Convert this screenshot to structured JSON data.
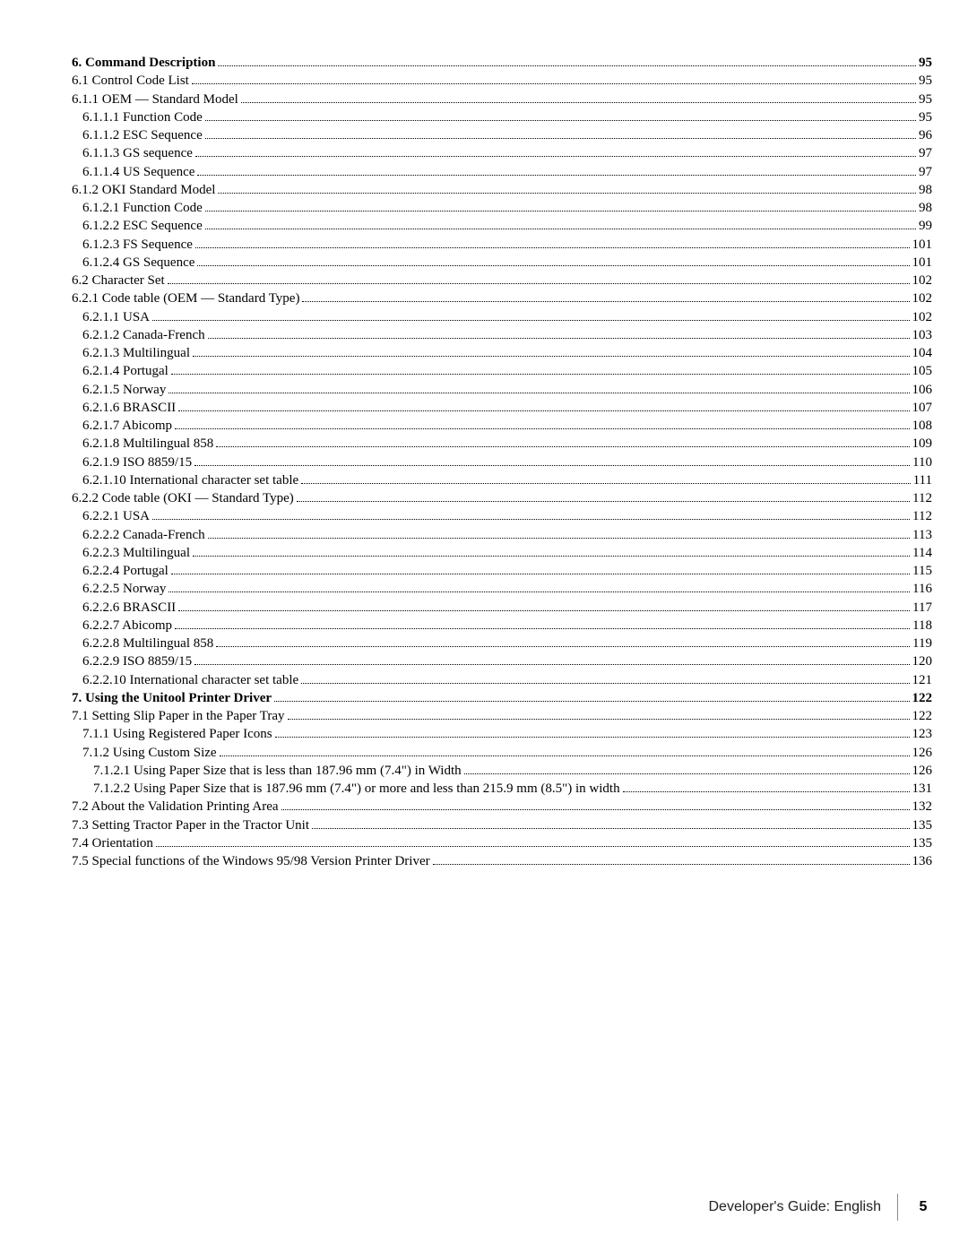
{
  "toc": [
    {
      "label": "6.   Command Description",
      "page": "95",
      "level": 0,
      "bold": true
    },
    {
      "label": "6.1  Control Code List",
      "page": "95",
      "level": 1,
      "bold": false
    },
    {
      "label": "6.1.1  OEM — Standard Model",
      "page": "95",
      "level": 1,
      "bold": false
    },
    {
      "label": "6.1.1.1  Function Code",
      "page": "95",
      "level": 2,
      "bold": false
    },
    {
      "label": "6.1.1.2  ESC Sequence",
      "page": "96",
      "level": 2,
      "bold": false
    },
    {
      "label": "6.1.1.3  GS sequence",
      "page": "97",
      "level": 2,
      "bold": false
    },
    {
      "label": "6.1.1.4  US Sequence",
      "page": "97",
      "level": 2,
      "bold": false
    },
    {
      "label": "6.1.2  OKI Standard Model",
      "page": "98",
      "level": 1,
      "bold": false
    },
    {
      "label": "6.1.2.1  Function Code",
      "page": "98",
      "level": 2,
      "bold": false
    },
    {
      "label": "6.1.2.2  ESC Sequence",
      "page": "99",
      "level": 2,
      "bold": false
    },
    {
      "label": "6.1.2.3  FS Sequence",
      "page": "101",
      "level": 2,
      "bold": false
    },
    {
      "label": "6.1.2.4  GS Sequence",
      "page": "101",
      "level": 2,
      "bold": false
    },
    {
      "label": "6.2  Character Set",
      "page": "102",
      "level": 1,
      "bold": false
    },
    {
      "label": "6.2.1  Code table (OEM — Standard Type)",
      "page": "102",
      "level": 1,
      "bold": false
    },
    {
      "label": "6.2.1.1  USA",
      "page": "102",
      "level": 2,
      "bold": false
    },
    {
      "label": "6.2.1.2  Canada-French",
      "page": "103",
      "level": 2,
      "bold": false
    },
    {
      "label": "6.2.1.3   Multilingual",
      "page": "104",
      "level": 2,
      "bold": false
    },
    {
      "label": "6.2.1.4  Portugal",
      "page": "105",
      "level": 2,
      "bold": false
    },
    {
      "label": "6.2.1.5  Norway",
      "page": "106",
      "level": 2,
      "bold": false
    },
    {
      "label": "6.2.1.6 BRASCII",
      "page": "107",
      "level": 2,
      "bold": false
    },
    {
      "label": "6.2.1.7  Abicomp",
      "page": "108",
      "level": 2,
      "bold": false
    },
    {
      "label": "6.2.1.8  Multilingual 858",
      "page": "109",
      "level": 2,
      "bold": false
    },
    {
      "label": "6.2.1.9  ISO 8859/15",
      "page": "110",
      "level": 2,
      "bold": false
    },
    {
      "label": "6.2.1.10   International character set table",
      "page": "111",
      "level": 2,
      "bold": false
    },
    {
      "label": "6.2.2  Code table (OKI — Standard Type)",
      "page": "112",
      "level": 1,
      "bold": false
    },
    {
      "label": "6.2.2.1  USA",
      "page": "112",
      "level": 2,
      "bold": false
    },
    {
      "label": "6.2.2.2  Canada-French",
      "page": "113",
      "level": 2,
      "bold": false
    },
    {
      "label": "6.2.2.3   Multilingual",
      "page": "114",
      "level": 2,
      "bold": false
    },
    {
      "label": "6.2.2.4  Portugal",
      "page": "115",
      "level": 2,
      "bold": false
    },
    {
      "label": "6.2.2.5  Norway",
      "page": "116",
      "level": 2,
      "bold": false
    },
    {
      "label": "6.2.2.6 BRASCII",
      "page": "117",
      "level": 2,
      "bold": false
    },
    {
      "label": "6.2.2.7  Abicomp",
      "page": "118",
      "level": 2,
      "bold": false
    },
    {
      "label": "6.2.2.8   Multilingual 858",
      "page": "119",
      "level": 2,
      "bold": false
    },
    {
      "label": "6.2.2.9  ISO 8859/15",
      "page": "120",
      "level": 2,
      "bold": false
    },
    {
      "label": "6.2.2.10  International character set table",
      "page": "121",
      "level": 2,
      "bold": false
    },
    {
      "label": "7.   Using the Unitool Printer Driver",
      "page": "122",
      "level": 0,
      "bold": true
    },
    {
      "label": "7.1  Setting Slip Paper in the Paper Tray",
      "page": "122",
      "level": 1,
      "bold": false
    },
    {
      "label": "7.1.1  Using Registered Paper Icons",
      "page": "123",
      "level": 2,
      "bold": false
    },
    {
      "label": "7.1.2  Using Custom Size",
      "page": "126",
      "level": 2,
      "bold": false
    },
    {
      "label": "7.1.2.1  Using Paper Size that is less than 187.96 mm (7.4\") in Width",
      "page": "126",
      "level": 3,
      "bold": false
    },
    {
      "label": "7.1.2.2  Using Paper Size that is 187.96 mm (7.4\") or more and less than 215.9 mm (8.5\") in width",
      "page": "131",
      "level": 3,
      "bold": false
    },
    {
      "label": "7.2  About the Validation Printing Area",
      "page": "132",
      "level": 1,
      "bold": false
    },
    {
      "label": "7.3  Setting Tractor Paper in the Tractor Unit",
      "page": "135",
      "level": 1,
      "bold": false
    },
    {
      "label": "7.4  Orientation",
      "page": "135",
      "level": 1,
      "bold": false
    },
    {
      "label": "7.5  Special functions of the Windows 95/98 Version Printer Driver",
      "page": "136",
      "level": 1,
      "bold": false
    }
  ],
  "footer": {
    "text": "Developer's Guide: English",
    "page": "5"
  }
}
